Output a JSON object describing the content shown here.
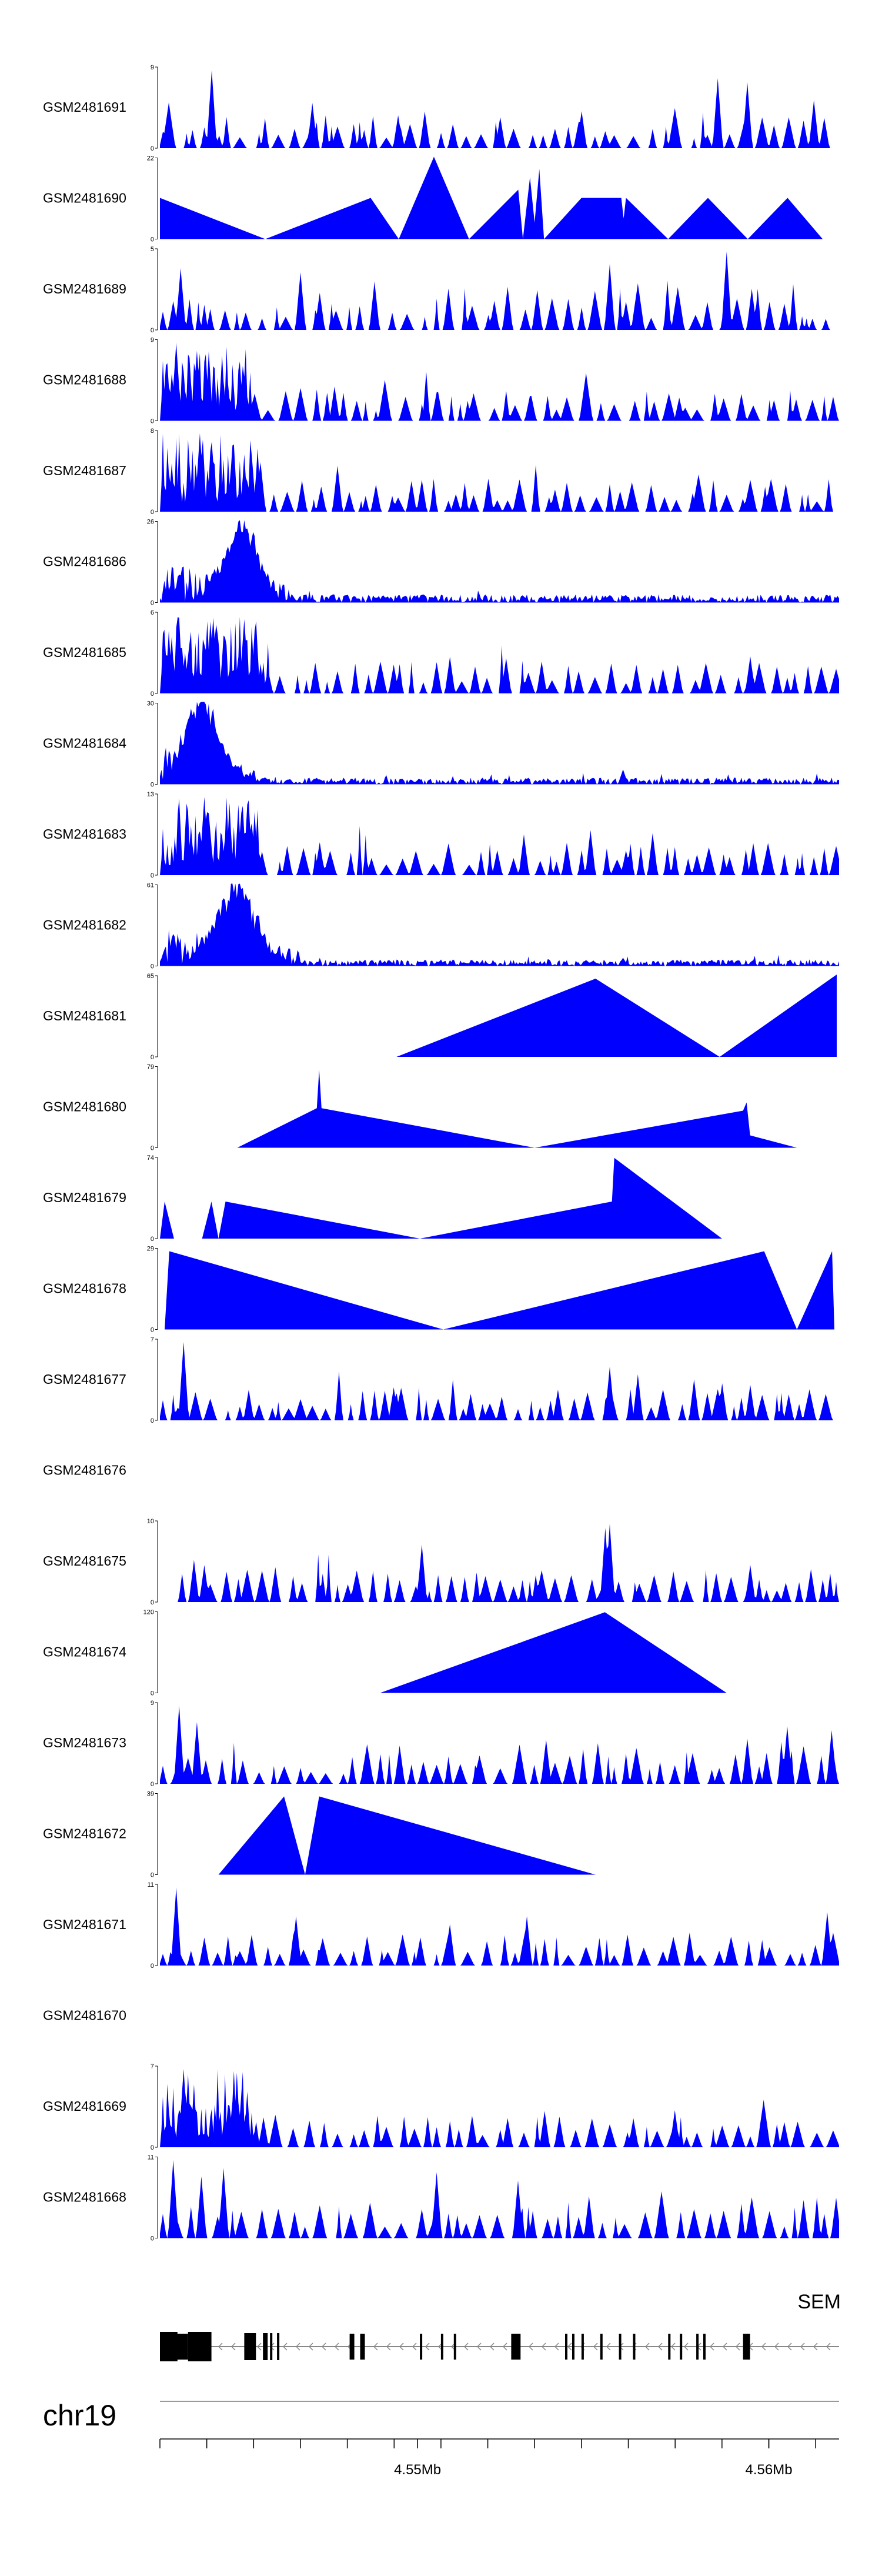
{
  "chart_data": {
    "type": "area",
    "title": "",
    "track_color": "#0000FF",
    "chromosome": "chr19",
    "x_range_bp": [
      4534000,
      4563000
    ],
    "tracks": [
      {
        "name": "GSM2481691",
        "ymax": "9",
        "ymax_value": 9,
        "pattern": "spiky",
        "seed": 11,
        "peaks": [
          [
            4536200,
            0.95
          ],
          [
            4540500,
            0.55
          ],
          [
            4544200,
            0.4
          ],
          [
            4552000,
            0.45
          ],
          [
            4557800,
            0.85
          ],
          [
            4559100,
            0.8
          ]
        ]
      },
      {
        "name": "GSM2481690",
        "ymax": "22",
        "ymax_value": 22,
        "pattern": "triangles",
        "points": [
          [
            4534000,
            0.5
          ],
          [
            4538500,
            0
          ],
          [
            4543000,
            0.5
          ],
          [
            4544200,
            0
          ],
          [
            4545700,
            1.0
          ],
          [
            4547200,
            0
          ],
          [
            4549300,
            0.6
          ],
          [
            4549500,
            0
          ],
          [
            4549800,
            0.75
          ],
          [
            4550000,
            0.2
          ],
          [
            4550200,
            0.85
          ],
          [
            4550400,
            0
          ],
          [
            4552000,
            0.5
          ],
          [
            4553700,
            0.5
          ],
          [
            4553800,
            0.25
          ],
          [
            4553900,
            0.5
          ],
          [
            4555700,
            0
          ],
          [
            4557400,
            0.5
          ],
          [
            4559100,
            0
          ],
          [
            4560800,
            0.5
          ],
          [
            4562300,
            0
          ]
        ]
      },
      {
        "name": "GSM2481689",
        "ymax": "5",
        "ymax_value": 5,
        "pattern": "spiky",
        "seed": 23,
        "peaks": [
          [
            4534900,
            0.75
          ],
          [
            4540000,
            0.7
          ],
          [
            4553200,
            0.8
          ],
          [
            4558200,
            0.95
          ],
          [
            4559300,
            0.5
          ]
        ]
      },
      {
        "name": "GSM2481688",
        "ymax": "9",
        "ymax_value": 9,
        "pattern": "dense-left",
        "seed": 37,
        "dense_end": 4538000,
        "peaks": [
          [
            4534700,
            0.95
          ],
          [
            4535600,
            0.85
          ],
          [
            4545900,
            0.35
          ],
          [
            4549800,
            0.3
          ],
          [
            4556200,
            0.28
          ]
        ]
      },
      {
        "name": "GSM2481687",
        "ymax": "8",
        "ymax_value": 8,
        "pattern": "dense-left",
        "seed": 41,
        "dense_end": 4538300,
        "peaks": [
          [
            4535700,
            0.95
          ],
          [
            4536200,
            0.85
          ],
          [
            4537100,
            0.75
          ],
          [
            4538300,
            0.6
          ],
          [
            4548000,
            0.4
          ]
        ]
      },
      {
        "name": "GSM2481686",
        "ymax": "26",
        "ymax_value": 26,
        "pattern": "bump-left",
        "seed": 53,
        "bump_center": 4537500,
        "bump_width": 900,
        "bump_h": 0.95,
        "baseline": 0.05
      },
      {
        "name": "GSM2481685",
        "ymax": "6",
        "ymax_value": 6,
        "pattern": "dense-left",
        "seed": 59,
        "dense_end": 4538700,
        "peaks": [
          [
            4536300,
            0.92
          ],
          [
            4537600,
            0.9
          ],
          [
            4544000,
            0.35
          ],
          [
            4559200,
            0.45
          ]
        ]
      },
      {
        "name": "GSM2481684",
        "ymax": "30",
        "ymax_value": 30,
        "pattern": "bump-left",
        "seed": 61,
        "bump_center": 4535800,
        "bump_width": 1000,
        "bump_h": 0.95,
        "baseline": 0.04,
        "peaks": [
          [
            4553800,
            0.18
          ]
        ]
      },
      {
        "name": "GSM2481683",
        "ymax": "13",
        "ymax_value": 13,
        "pattern": "dense-left",
        "seed": 67,
        "dense_end": 4538300,
        "peaks": [
          [
            4535900,
            0.95
          ],
          [
            4536100,
            0.75
          ],
          [
            4540800,
            0.4
          ],
          [
            4553900,
            0.3
          ]
        ]
      },
      {
        "name": "GSM2481682",
        "ymax": "61",
        "ymax_value": 61,
        "pattern": "bump-left",
        "seed": 71,
        "bump_center": 4537200,
        "bump_width": 1100,
        "bump_h": 0.95,
        "baseline": 0.04,
        "peaks": [
          [
            4553800,
            0.1
          ]
        ]
      },
      {
        "name": "GSM2481681",
        "ymax": "65",
        "ymax_value": 65,
        "pattern": "triangles",
        "points": [
          [
            4544100,
            0
          ],
          [
            4552600,
            0.95
          ],
          [
            4557900,
            0
          ],
          [
            4562900,
            1.0
          ]
        ]
      },
      {
        "name": "GSM2481680",
        "ymax": "79",
        "ymax_value": 79,
        "pattern": "triangles",
        "points": [
          [
            4537300,
            0
          ],
          [
            4540700,
            0.48
          ],
          [
            4540800,
            0.95
          ],
          [
            4540900,
            0.48
          ],
          [
            4550000,
            0
          ],
          [
            4558900,
            0.45
          ],
          [
            4559050,
            0.55
          ],
          [
            4559200,
            0.15
          ],
          [
            4561200,
            0
          ]
        ]
      },
      {
        "name": "GSM2481679",
        "ymax": "74",
        "ymax_value": 74,
        "pattern": "triangles",
        "points": [
          [
            4534000,
            0
          ],
          [
            4534200,
            0.45
          ],
          [
            4534600,
            0
          ],
          [
            4535800,
            0
          ],
          [
            4536200,
            0.45
          ],
          [
            4536500,
            0
          ],
          [
            4536800,
            0.45
          ],
          [
            4545100,
            0
          ],
          [
            4553300,
            0.45
          ],
          [
            4553400,
            0.98
          ],
          [
            4558000,
            0
          ]
        ]
      },
      {
        "name": "GSM2481678",
        "ymax": "29",
        "ymax_value": 29,
        "pattern": "triangles",
        "points": [
          [
            4534200,
            0
          ],
          [
            4534400,
            0.95
          ],
          [
            4546100,
            0
          ],
          [
            4559800,
            0.95
          ],
          [
            4561200,
            0
          ],
          [
            4562700,
            0.95
          ],
          [
            4562800,
            0
          ]
        ]
      },
      {
        "name": "GSM2481677",
        "ymax": "7",
        "ymax_value": 7,
        "pattern": "spiky",
        "seed": 79,
        "peaks": [
          [
            4535000,
            0.95
          ],
          [
            4544000,
            0.4
          ],
          [
            4553200,
            0.65
          ],
          [
            4558000,
            0.45
          ]
        ]
      },
      {
        "name": "GSM2481676",
        "ymax": "",
        "ymax_value": 0,
        "pattern": "empty"
      },
      {
        "name": "GSM2481675",
        "ymax": "10",
        "ymax_value": 10,
        "pattern": "spiky",
        "seed": 83,
        "start": 4534800,
        "peaks": [
          [
            4535900,
            0.45
          ],
          [
            4545200,
            0.7
          ],
          [
            4553000,
            0.9
          ],
          [
            4553200,
            0.95
          ],
          [
            4559200,
            0.45
          ]
        ]
      },
      {
        "name": "GSM2481674",
        "ymax": "120",
        "ymax_value": 120,
        "pattern": "triangles",
        "points": [
          [
            4543400,
            0
          ],
          [
            4553000,
            0.98
          ],
          [
            4558200,
            0
          ]
        ]
      },
      {
        "name": "GSM2481673",
        "ymax": "9",
        "ymax_value": 9,
        "pattern": "spiky",
        "seed": 89,
        "peaks": [
          [
            4534800,
            0.95
          ],
          [
            4535600,
            0.75
          ],
          [
            4560800,
            0.7
          ],
          [
            4562700,
            0.65
          ]
        ]
      },
      {
        "name": "GSM2481672",
        "ymax": "39",
        "ymax_value": 39,
        "pattern": "triangles",
        "points": [
          [
            4536500,
            0
          ],
          [
            4539300,
            0.95
          ],
          [
            4540200,
            0
          ],
          [
            4540800,
            0.95
          ],
          [
            4552600,
            0
          ]
        ]
      },
      {
        "name": "GSM2481671",
        "ymax": "11",
        "ymax_value": 11,
        "pattern": "spiky",
        "seed": 97,
        "peaks": [
          [
            4534700,
            0.95
          ],
          [
            4539800,
            0.6
          ],
          [
            4546400,
            0.5
          ],
          [
            4549700,
            0.6
          ],
          [
            4562500,
            0.65
          ]
        ]
      },
      {
        "name": "GSM2481670",
        "ymax": "",
        "ymax_value": 0,
        "pattern": "empty"
      },
      {
        "name": "GSM2481669",
        "ymax": "7",
        "ymax_value": 7,
        "pattern": "dense-left",
        "seed": 101,
        "dense_end": 4538000,
        "peaks": [
          [
            4535000,
            0.95
          ],
          [
            4537000,
            0.5
          ],
          [
            4556000,
            0.45
          ]
        ]
      },
      {
        "name": "GSM2481668",
        "ymax": "11",
        "ymax_value": 11,
        "pattern": "spiky",
        "seed": 103,
        "peaks": [
          [
            4534600,
            0.95
          ],
          [
            4535800,
            0.75
          ],
          [
            4536700,
            0.85
          ],
          [
            4545800,
            0.8
          ],
          [
            4549300,
            0.7
          ]
        ]
      }
    ],
    "gene": {
      "name": "SEM",
      "strand": "-",
      "exons_bp": [
        [
          4534000,
          4534550
        ],
        [
          4534450,
          4534750
        ],
        [
          4535200,
          4536200
        ],
        [
          4537600,
          4538100
        ],
        [
          4538400,
          4538600
        ],
        [
          4538700,
          4538800
        ],
        [
          4539000,
          4539100
        ],
        [
          4542100,
          4542300
        ],
        [
          4542550,
          4542750
        ],
        [
          4545100,
          4545200
        ],
        [
          4546000,
          4546100
        ],
        [
          4546550,
          4546650
        ],
        [
          4549000,
          4549400
        ],
        [
          4551300,
          4551400
        ],
        [
          4551600,
          4551700
        ],
        [
          4552000,
          4552100
        ],
        [
          4552800,
          4552900
        ],
        [
          4553600,
          4553700
        ],
        [
          4554200,
          4554300
        ],
        [
          4555700,
          4555800
        ],
        [
          4556200,
          4556300
        ],
        [
          4556900,
          4557000
        ],
        [
          4557200,
          4557300
        ],
        [
          4558900,
          4559200
        ]
      ],
      "intron_start_bp": 4534000,
      "intron_end_bp": 4563000
    },
    "axis": {
      "tick_positions_bp": [
        4534000,
        4536000,
        4538000,
        4540000,
        4542000,
        4544000,
        4546000,
        4548000,
        4550000,
        4552000,
        4554000,
        4556000,
        4558000,
        4560000,
        4562000
      ],
      "labels": [
        {
          "bp": 4545000,
          "text": "4.55Mb"
        },
        {
          "bp": 4560000,
          "text": "4.56Mb"
        }
      ]
    }
  }
}
